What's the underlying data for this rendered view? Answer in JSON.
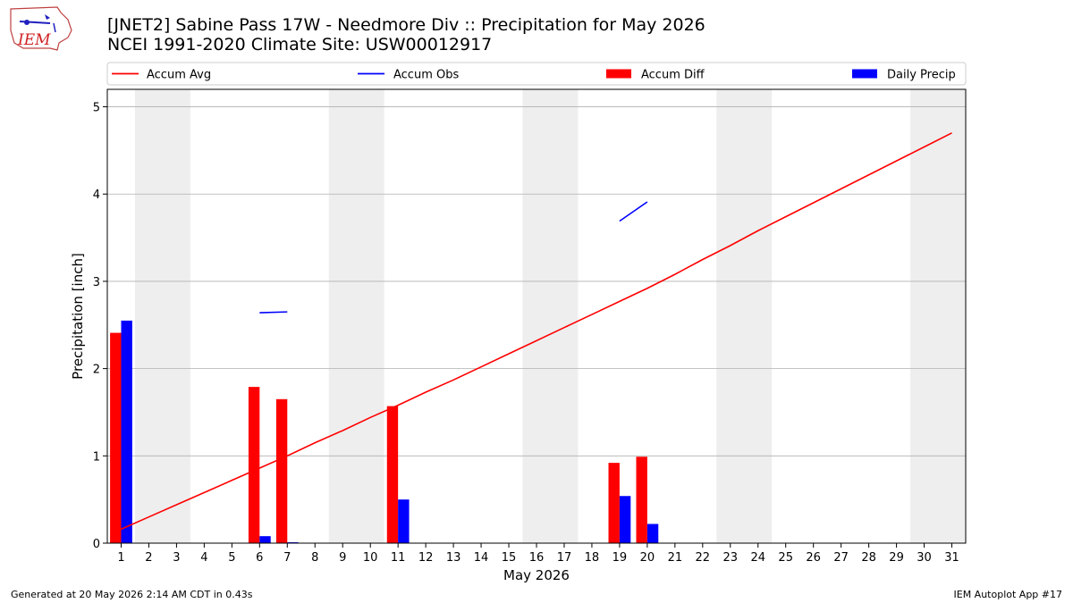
{
  "header": {
    "logo_text": "IEM",
    "title_line1": "[JNET2] Sabine Pass 17W - Needmore Div :: Precipitation for May 2026",
    "title_line2": "NCEI 1991-2020 Climate Site: USW00012917"
  },
  "footer": {
    "generated": "Generated at 20 May 2026 2:14 AM CDT in 0.43s",
    "app": "IEM Autoplot App #17"
  },
  "colors": {
    "accum_avg": "#ff0000",
    "accum_obs": "#0000ff",
    "accum_diff": "#ff0000",
    "daily_precip": "#0000ff",
    "weekend_band": "#eeeeee",
    "grid": "#b0b0b0"
  },
  "chart_data": {
    "type": "bar",
    "title": "[JNET2] Sabine Pass 17W - Needmore Div :: Precipitation for May 2026",
    "xlabel": "May 2026",
    "ylabel": "Precipitation [inch]",
    "xlim": [
      0.5,
      31.5
    ],
    "ylim": [
      0,
      5.2
    ],
    "yticks": [
      "0",
      "1",
      "2",
      "3",
      "4",
      "5"
    ],
    "x": [
      "1",
      "2",
      "3",
      "4",
      "5",
      "6",
      "7",
      "8",
      "9",
      "10",
      "11",
      "12",
      "13",
      "14",
      "15",
      "16",
      "17",
      "18",
      "19",
      "20",
      "21",
      "22",
      "23",
      "24",
      "25",
      "26",
      "27",
      "28",
      "29",
      "30",
      "31"
    ],
    "grid": "horizontal",
    "legend_placement": "top",
    "weekend_bands": [
      [
        2,
        3
      ],
      [
        9,
        10
      ],
      [
        16,
        17
      ],
      [
        23,
        24
      ],
      [
        30,
        31
      ]
    ],
    "series": [
      {
        "name": "Accum Avg",
        "kind": "line",
        "values": [
          0.16,
          0.3,
          0.44,
          0.58,
          0.72,
          0.86,
          1.0,
          1.15,
          1.29,
          1.44,
          1.58,
          1.73,
          1.87,
          2.02,
          2.17,
          2.32,
          2.47,
          2.62,
          2.77,
          2.92,
          3.08,
          3.25,
          3.41,
          3.58,
          3.74,
          3.9,
          4.06,
          4.22,
          4.38,
          4.54,
          4.7
        ]
      },
      {
        "name": "Accum Obs",
        "kind": "line",
        "segments": [
          {
            "x": [
              6,
              7
            ],
            "y": [
              2.64,
              2.65
            ]
          },
          {
            "x": [
              19,
              20
            ],
            "y": [
              3.69,
              3.91
            ]
          }
        ]
      },
      {
        "name": "Accum Diff",
        "kind": "bar",
        "points": [
          {
            "x": 1,
            "y": 2.41
          },
          {
            "x": 6,
            "y": 1.79
          },
          {
            "x": 7,
            "y": 1.65
          },
          {
            "x": 11,
            "y": 1.57
          },
          {
            "x": 19,
            "y": 0.92
          },
          {
            "x": 20,
            "y": 0.99
          }
        ]
      },
      {
        "name": "Daily Precip",
        "kind": "bar",
        "points": [
          {
            "x": 1,
            "y": 2.55
          },
          {
            "x": 6,
            "y": 0.08
          },
          {
            "x": 7,
            "y": 0.01
          },
          {
            "x": 11,
            "y": 0.5
          },
          {
            "x": 19,
            "y": 0.54
          },
          {
            "x": 20,
            "y": 0.22
          }
        ]
      }
    ]
  }
}
